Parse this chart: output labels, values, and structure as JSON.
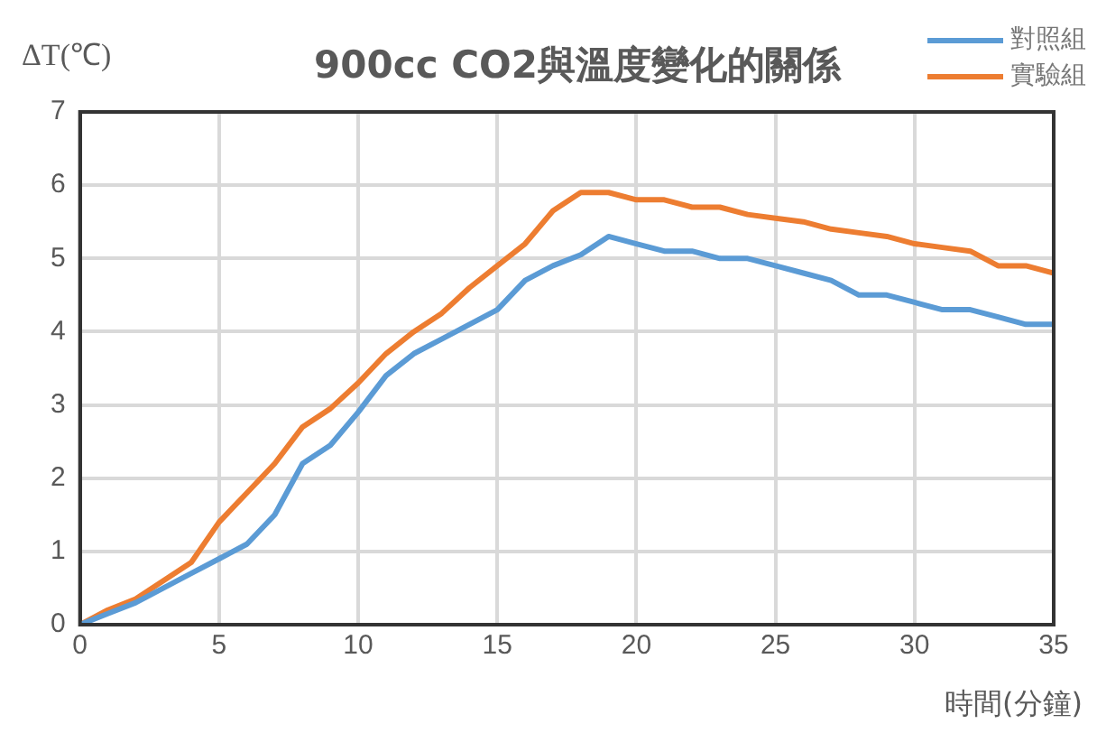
{
  "chart_data": {
    "type": "line",
    "title": "900cc CO2與溫度變化的關係",
    "xlabel": "時間(分鐘)",
    "ylabel": "ΔT(℃)",
    "x": [
      0,
      1,
      2,
      3,
      4,
      5,
      6,
      7,
      8,
      9,
      10,
      11,
      12,
      13,
      14,
      15,
      16,
      17,
      18,
      19,
      20,
      21,
      22,
      23,
      24,
      25,
      26,
      27,
      28,
      29,
      30,
      31,
      32,
      33,
      34,
      35
    ],
    "series": [
      {
        "name": "對照組",
        "color": "#5b9bd5",
        "values": [
          0,
          0.15,
          0.3,
          0.5,
          0.7,
          0.9,
          1.1,
          1.5,
          2.2,
          2.45,
          2.9,
          3.4,
          3.7,
          3.9,
          4.1,
          4.3,
          4.7,
          4.9,
          5.05,
          5.3,
          5.2,
          5.1,
          5.1,
          5.0,
          5.0,
          4.9,
          4.8,
          4.7,
          4.5,
          4.5,
          4.4,
          4.3,
          4.3,
          4.2,
          4.1,
          4.1
        ]
      },
      {
        "name": "實驗組",
        "color": "#ed7d31",
        "values": [
          0,
          0.2,
          0.35,
          0.6,
          0.85,
          1.4,
          1.8,
          2.2,
          2.7,
          2.95,
          3.3,
          3.7,
          4.0,
          4.25,
          4.6,
          4.9,
          5.2,
          5.65,
          5.9,
          5.9,
          5.8,
          5.8,
          5.7,
          5.7,
          5.6,
          5.55,
          5.5,
          5.4,
          5.35,
          5.3,
          5.2,
          5.15,
          5.1,
          4.9,
          4.9,
          4.8
        ]
      }
    ],
    "xlim": [
      0,
      35
    ],
    "xticks": [
      0,
      5,
      10,
      15,
      20,
      25,
      30,
      35
    ],
    "ylim": [
      0,
      7
    ],
    "yticks": [
      0,
      1,
      2,
      3,
      4,
      5,
      6,
      7
    ],
    "grid": true,
    "legend": "top right",
    "marker": "none",
    "line_style": "solid"
  }
}
